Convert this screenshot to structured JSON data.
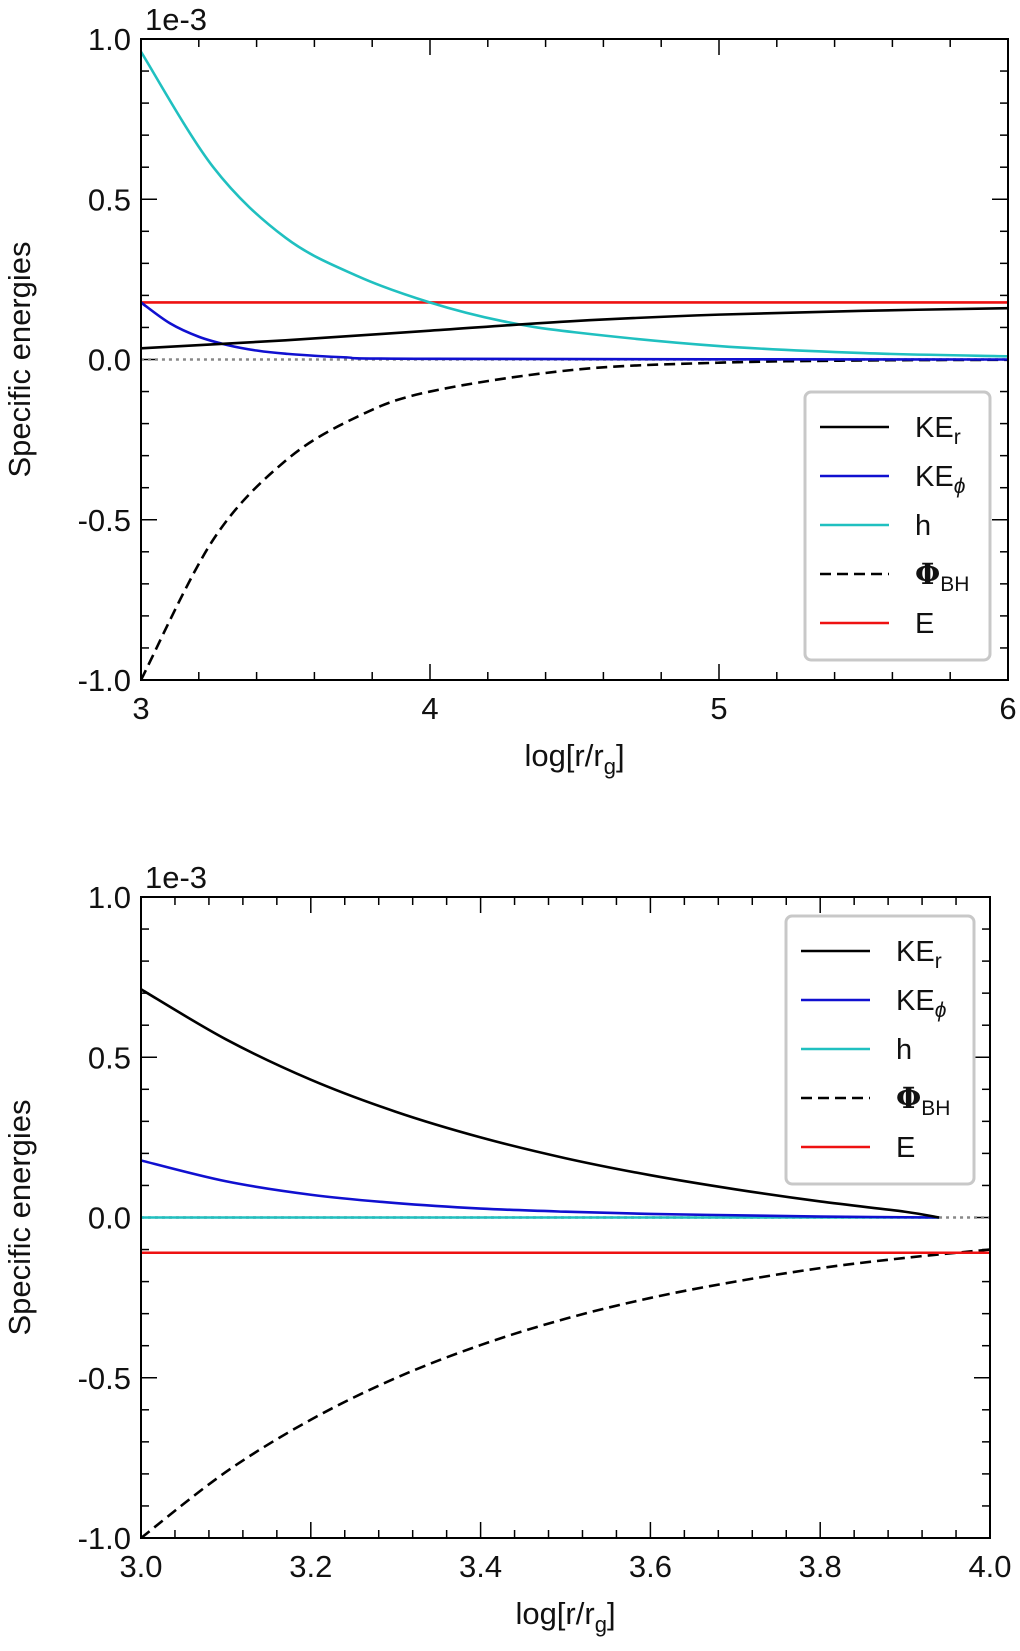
{
  "chart_data": [
    {
      "type": "line",
      "scale_label": "1e-3",
      "xlabel": "log[r/r",
      "xlabel_sub": "g",
      "xlabel_close": "]",
      "ylabel": "Specific energies",
      "xlim": [
        3,
        6
      ],
      "ylim": [
        -1.0,
        1.0
      ],
      "xticks": [
        "3",
        "4",
        "5",
        "6"
      ],
      "yticks": [
        "-1.0",
        "-0.5",
        "0.0",
        "0.5",
        "1.0"
      ],
      "legend_position": "lower-right",
      "series": [
        {
          "key": "ker",
          "name": "KE",
          "sub": "r",
          "color": "#000000",
          "dash": "solid",
          "x": [
            3.0,
            3.5,
            4.0,
            4.5,
            5.0,
            5.5,
            6.0
          ],
          "y": [
            0.035,
            0.06,
            0.09,
            0.12,
            0.14,
            0.152,
            0.16
          ]
        },
        {
          "key": "kephi",
          "name": "KE",
          "sub": "ϕ",
          "color": "#1010d0",
          "dash": "solid",
          "x": [
            3.0,
            3.1,
            3.2,
            3.3,
            3.4,
            3.5,
            3.7,
            4.0,
            6.0
          ],
          "y": [
            0.178,
            0.113,
            0.071,
            0.045,
            0.028,
            0.018,
            0.007,
            0.002,
            0.0
          ]
        },
        {
          "key": "h",
          "name": "h",
          "sub": "",
          "color": "#20c0c0",
          "dash": "solid",
          "x": [
            3.0,
            3.25,
            3.5,
            3.75,
            4.0,
            4.25,
            4.5,
            5.0,
            5.5,
            6.0
          ],
          "y": [
            0.96,
            0.6,
            0.38,
            0.26,
            0.178,
            0.12,
            0.085,
            0.042,
            0.02,
            0.01
          ]
        },
        {
          "key": "phi",
          "name": "Φ",
          "sub": "BH",
          "color": "#000000",
          "dash": "dashed",
          "x": [
            3.0,
            3.25,
            3.5,
            3.75,
            4.0,
            4.5,
            5.0,
            5.5,
            6.0
          ],
          "y": [
            -1.0,
            -0.562,
            -0.316,
            -0.178,
            -0.1,
            -0.032,
            -0.01,
            -0.003,
            -0.001
          ]
        },
        {
          "key": "e",
          "name": "E",
          "sub": "",
          "color": "#ee1111",
          "dash": "solid",
          "x": [
            3.0,
            6.0
          ],
          "y": [
            0.178,
            0.178
          ]
        },
        {
          "key": "zero",
          "name": "",
          "sub": "",
          "color": "#888888",
          "dash": "dotted",
          "x": [
            3.0,
            6.0
          ],
          "y": [
            0.0,
            0.0
          ]
        }
      ]
    },
    {
      "type": "line",
      "scale_label": "1e-3",
      "xlabel": "log[r/r",
      "xlabel_sub": "g",
      "xlabel_close": "]",
      "ylabel": "Specific energies",
      "xlim": [
        3.0,
        4.0
      ],
      "ylim": [
        -1.0,
        1.0
      ],
      "xticks": [
        "3.0",
        "3.2",
        "3.4",
        "3.6",
        "3.8",
        "4.0"
      ],
      "yticks": [
        "-1.0",
        "-0.5",
        "0.0",
        "0.5",
        "1.0"
      ],
      "legend_position": "upper-right",
      "series": [
        {
          "key": "ker",
          "name": "KE",
          "sub": "r",
          "color": "#000000",
          "dash": "solid",
          "x": [
            3.0,
            3.1,
            3.2,
            3.3,
            3.4,
            3.5,
            3.6,
            3.7,
            3.8,
            3.9,
            3.94
          ],
          "y": [
            0.712,
            0.556,
            0.43,
            0.33,
            0.25,
            0.185,
            0.132,
            0.088,
            0.05,
            0.018,
            0.0
          ]
        },
        {
          "key": "kephi",
          "name": "KE",
          "sub": "ϕ",
          "color": "#1010d0",
          "dash": "solid",
          "x": [
            3.0,
            3.1,
            3.2,
            3.3,
            3.4,
            3.5,
            3.6,
            3.7,
            3.8,
            3.94
          ],
          "y": [
            0.178,
            0.113,
            0.071,
            0.045,
            0.028,
            0.018,
            0.011,
            0.007,
            0.003,
            0.0
          ]
        },
        {
          "key": "h",
          "name": "h",
          "sub": "",
          "color": "#20c0c0",
          "dash": "solid",
          "x": [
            3.0,
            3.94
          ],
          "y": [
            0.0,
            0.0
          ]
        },
        {
          "key": "phi",
          "name": "Φ",
          "sub": "BH",
          "color": "#000000",
          "dash": "dashed",
          "x": [
            3.0,
            3.1,
            3.2,
            3.3,
            3.4,
            3.5,
            3.6,
            3.7,
            3.8,
            3.9,
            4.0
          ],
          "y": [
            -1.0,
            -0.794,
            -0.631,
            -0.501,
            -0.398,
            -0.316,
            -0.251,
            -0.2,
            -0.158,
            -0.126,
            -0.1
          ]
        },
        {
          "key": "e",
          "name": "E",
          "sub": "",
          "color": "#ee1111",
          "dash": "solid",
          "x": [
            3.0,
            4.0
          ],
          "y": [
            -0.11,
            -0.11
          ]
        },
        {
          "key": "zero",
          "name": "",
          "sub": "",
          "color": "#888888",
          "dash": "dotted",
          "x": [
            3.0,
            4.0
          ],
          "y": [
            0.0,
            0.0
          ]
        }
      ]
    }
  ]
}
